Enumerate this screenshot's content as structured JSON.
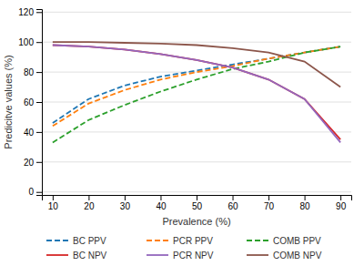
{
  "chart_data": {
    "type": "line",
    "x": [
      10,
      20,
      30,
      40,
      50,
      60,
      70,
      80,
      90
    ],
    "series": [
      {
        "name": "BC PPV",
        "line_style": "dashed",
        "values": [
          46,
          62,
          71,
          77,
          81,
          85,
          89,
          93,
          97
        ]
      },
      {
        "name": "PCR PPV",
        "line_style": "dashed",
        "values": [
          44,
          59,
          68,
          75,
          80,
          84,
          89,
          93,
          97
        ]
      },
      {
        "name": "COMB PPV",
        "line_style": "dashed",
        "values": [
          33,
          48,
          58,
          67,
          75,
          82,
          87,
          93,
          97
        ]
      },
      {
        "name": "BC NPV",
        "line_style": "solid",
        "values": [
          98,
          97,
          95,
          92,
          88,
          83,
          75,
          62,
          35
        ]
      },
      {
        "name": "PCR NPV",
        "line_style": "solid",
        "values": [
          98,
          97,
          95,
          92,
          88,
          83,
          75,
          62,
          33
        ]
      },
      {
        "name": "COMB NPV",
        "line_style": "solid",
        "values": [
          100,
          100,
          99.5,
          99,
          98,
          96,
          93,
          87,
          70
        ]
      }
    ],
    "xlabel": "Prevalence (%)",
    "ylabel": "Predicitve values (%)",
    "xlim": [
      7,
      93
    ],
    "ylim": [
      -2,
      122
    ],
    "xticks": [
      10,
      20,
      30,
      40,
      50,
      60,
      70,
      80,
      90
    ],
    "yticks": [
      0,
      20,
      40,
      60,
      80,
      100,
      120
    ],
    "grid": true,
    "legend": "bottom"
  }
}
